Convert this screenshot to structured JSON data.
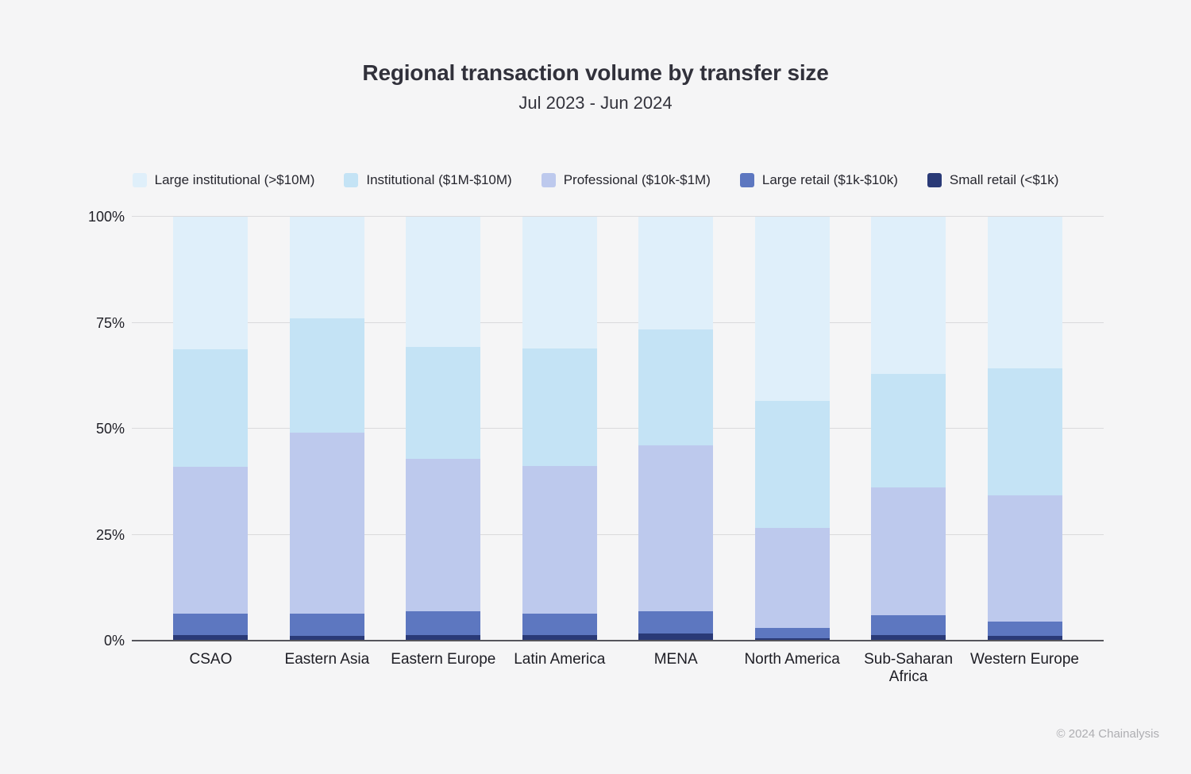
{
  "title": "Regional transaction volume by transfer size",
  "subtitle": "Jul 2023 - Jun 2024",
  "footer": "© 2024 Chainalysis",
  "colors": {
    "background": "#f5f5f6",
    "gridline": "#dadadc",
    "axis_line": "#56565c",
    "title_text": "#31313b",
    "axis_label_text": "#202027",
    "footer_text": "#aeaeb2"
  },
  "chart_data": {
    "type": "bar",
    "stacked": true,
    "units": "percent",
    "title": "Regional transaction volume by transfer size",
    "subtitle": "Jul 2023 - Jun 2024",
    "xlabel": "",
    "ylabel": "",
    "ylim": [
      0,
      100
    ],
    "yticks": [
      "0%",
      "25%",
      "50%",
      "75%",
      "100%"
    ],
    "grid": true,
    "legend_position": "top",
    "categories": [
      "CSAO",
      "Eastern Asia",
      "Eastern Europe",
      "Latin America",
      "MENA",
      "North America",
      "Sub-Saharan Africa",
      "Western Europe"
    ],
    "series": [
      {
        "name": "Large institutional (>$10M)",
        "color": "#dfeffa",
        "values": [
          31.3,
          24.0,
          30.7,
          31.1,
          26.5,
          43.5,
          37.0,
          35.8
        ]
      },
      {
        "name": "Institutional ($1M-$10M)",
        "color": "#c4e3f5",
        "values": [
          27.7,
          27.0,
          26.5,
          27.7,
          27.5,
          30.0,
          26.8,
          29.9
        ]
      },
      {
        "name": "Professional ($10k-$1M)",
        "color": "#bdc9ed",
        "values": [
          34.7,
          42.7,
          35.9,
          34.9,
          39.0,
          23.5,
          30.2,
          29.8
        ]
      },
      {
        "name": "Large retail ($1k-$10k)",
        "color": "#5d77c0",
        "values": [
          5.0,
          5.1,
          5.5,
          5.0,
          5.4,
          2.4,
          4.6,
          3.4
        ]
      },
      {
        "name": "Small retail (<$1k)",
        "color": "#2a3a77",
        "values": [
          1.3,
          1.2,
          1.4,
          1.3,
          1.6,
          0.6,
          1.4,
          1.1
        ]
      }
    ]
  }
}
